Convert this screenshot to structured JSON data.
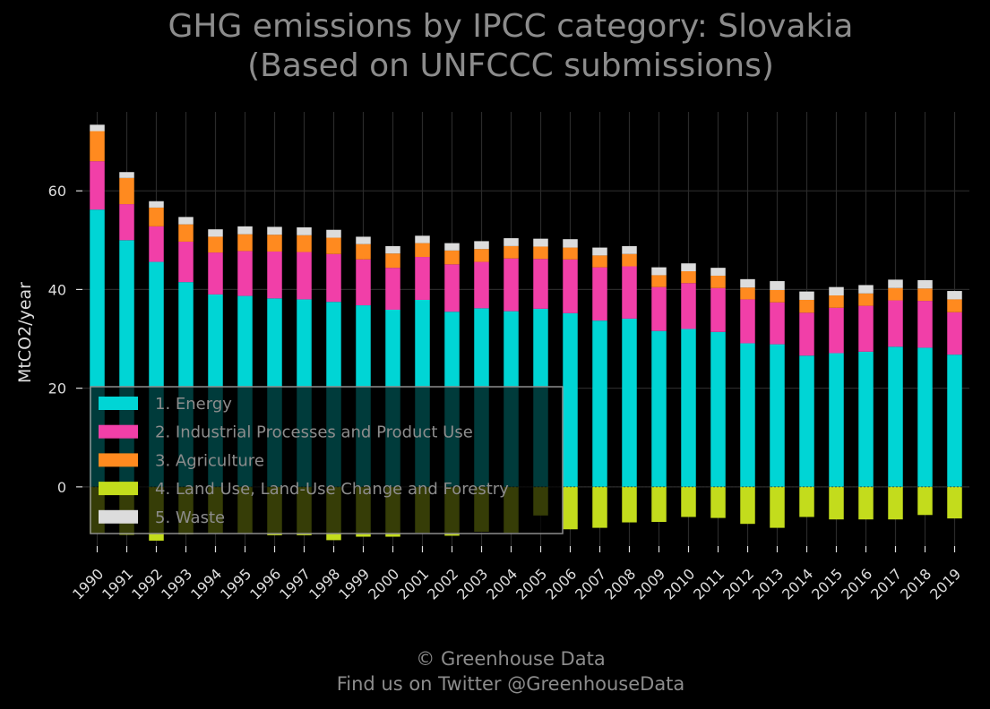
{
  "title_line1": "GHG emissions by IPCC category: Slovakia",
  "title_line2": "(Based on UNFCCC submissions)",
  "credit_line1": "© Greenhouse Data",
  "credit_line2": "Find us on Twitter @GreenhouseData",
  "chart_data": {
    "type": "bar",
    "stacked": true,
    "title": "GHG emissions by IPCC category: Slovakia (Based on UNFCCC submissions)",
    "xlabel": "",
    "ylabel": "MtCO2/year",
    "ylim": [
      -12,
      76
    ],
    "yticks": [
      0,
      20,
      40,
      60
    ],
    "grid": true,
    "legend_position": "lower-left",
    "categories": [
      "1990",
      "1991",
      "1992",
      "1993",
      "1994",
      "1995",
      "1996",
      "1997",
      "1998",
      "1999",
      "2000",
      "2001",
      "2002",
      "2003",
      "2004",
      "2005",
      "2006",
      "2007",
      "2008",
      "2009",
      "2010",
      "2011",
      "2012",
      "2013",
      "2014",
      "2015",
      "2016",
      "2017",
      "2018",
      "2019"
    ],
    "series": [
      {
        "name": "1. Energy",
        "color": "#00d5d5",
        "values": [
          56.2,
          50.0,
          45.6,
          41.5,
          39.0,
          38.7,
          38.2,
          38.0,
          37.5,
          36.8,
          35.9,
          37.9,
          35.5,
          36.2,
          35.6,
          36.1,
          35.2,
          33.7,
          34.1,
          31.6,
          32.0,
          31.4,
          29.1,
          28.9,
          26.6,
          27.1,
          27.4,
          28.4,
          28.2,
          26.8
        ]
      },
      {
        "name": "2. Industrial Processes and Product Use",
        "color": "#f13fa8",
        "values": [
          9.8,
          7.3,
          7.2,
          8.2,
          8.5,
          9.1,
          9.5,
          9.6,
          9.7,
          9.3,
          8.5,
          8.7,
          9.6,
          9.4,
          10.7,
          10.1,
          10.9,
          10.8,
          10.6,
          8.9,
          9.3,
          8.9,
          8.9,
          8.5,
          8.7,
          9.2,
          9.3,
          9.4,
          9.5,
          8.6
        ]
      },
      {
        "name": "3. Agriculture",
        "color": "#ff8a1f",
        "values": [
          6.1,
          5.3,
          3.8,
          3.5,
          3.2,
          3.4,
          3.4,
          3.4,
          3.3,
          3.1,
          2.9,
          2.8,
          2.8,
          2.6,
          2.5,
          2.5,
          2.4,
          2.4,
          2.5,
          2.4,
          2.4,
          2.5,
          2.4,
          2.5,
          2.6,
          2.5,
          2.5,
          2.5,
          2.5,
          2.6
        ]
      },
      {
        "name": "4. Land Use, Land-Use Change and Forestry",
        "color": "#c3dc1c",
        "values": [
          -9.5,
          -9.7,
          -10.9,
          -9.6,
          -9.4,
          -9.5,
          -9.8,
          -9.8,
          -10.8,
          -10.1,
          -10.1,
          -9.3,
          -9.9,
          -9.1,
          -9.3,
          -5.8,
          -8.6,
          -8.3,
          -7.2,
          -7.1,
          -6.1,
          -6.3,
          -7.5,
          -8.3,
          -6.1,
          -6.6,
          -6.6,
          -6.6,
          -5.7,
          -6.4
        ]
      },
      {
        "name": "5. Waste",
        "color": "#dcdcdc",
        "values": [
          1.3,
          1.2,
          1.3,
          1.5,
          1.5,
          1.6,
          1.6,
          1.6,
          1.6,
          1.5,
          1.5,
          1.5,
          1.5,
          1.6,
          1.6,
          1.6,
          1.7,
          1.6,
          1.6,
          1.6,
          1.6,
          1.6,
          1.7,
          1.8,
          1.7,
          1.7,
          1.7,
          1.7,
          1.7,
          1.7
        ]
      }
    ]
  }
}
